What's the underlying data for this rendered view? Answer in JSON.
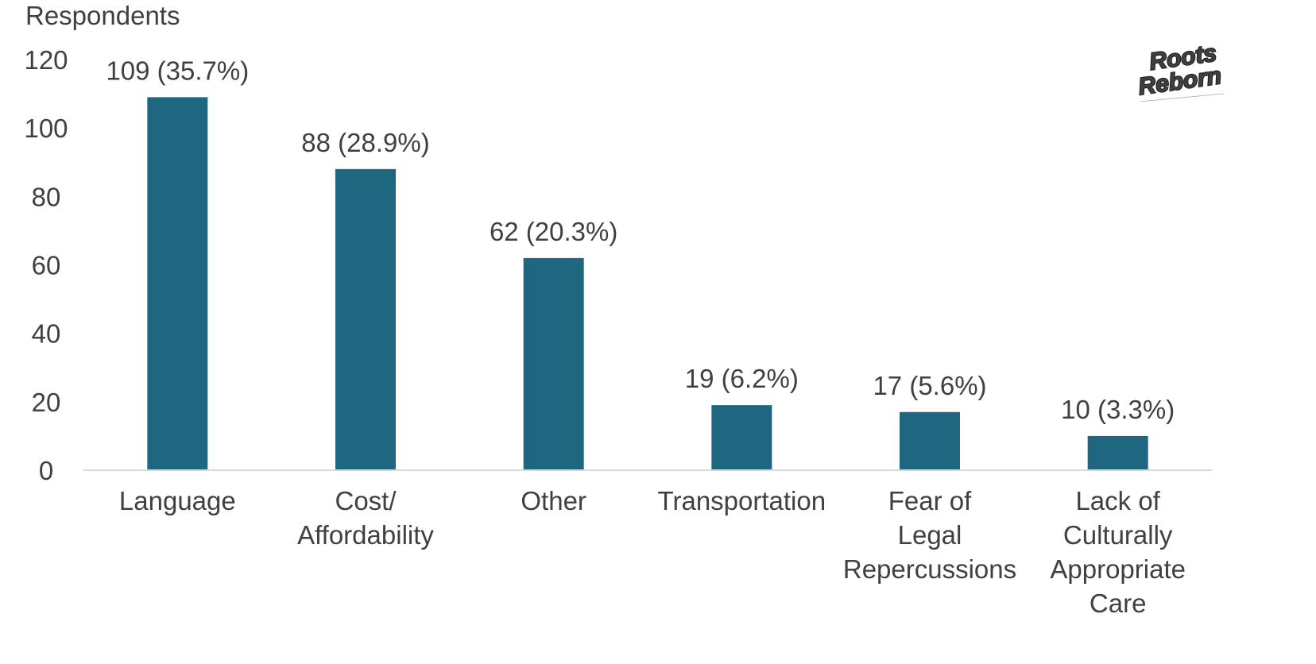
{
  "chart_data": {
    "type": "bar",
    "title": "",
    "ylabel": "Respondents",
    "xlabel": "",
    "ylim": [
      0,
      120
    ],
    "yticks": [
      0,
      20,
      40,
      60,
      80,
      100,
      120
    ],
    "grid": false,
    "bar_color": "#1F6680",
    "categories": [
      [
        "Language"
      ],
      [
        "Cost/",
        "Affordability"
      ],
      [
        "Other"
      ],
      [
        "Transportation"
      ],
      [
        "Fear of",
        "Legal",
        "Repercussions"
      ],
      [
        "Lack of",
        "Culturally",
        "Appropriate",
        "Care"
      ]
    ],
    "values": [
      109,
      88,
      62,
      19,
      17,
      10
    ],
    "data_labels": [
      "109 (35.7%)",
      "88 (28.9%)",
      "62 (20.3%)",
      "19 (6.2%)",
      "17 (5.6%)",
      "10 (3.3%)"
    ]
  },
  "logo": {
    "line1": "Roots",
    "line2": "Reborn",
    "fill_color": "#C9A800",
    "outline_color": "#1a1a1a"
  }
}
